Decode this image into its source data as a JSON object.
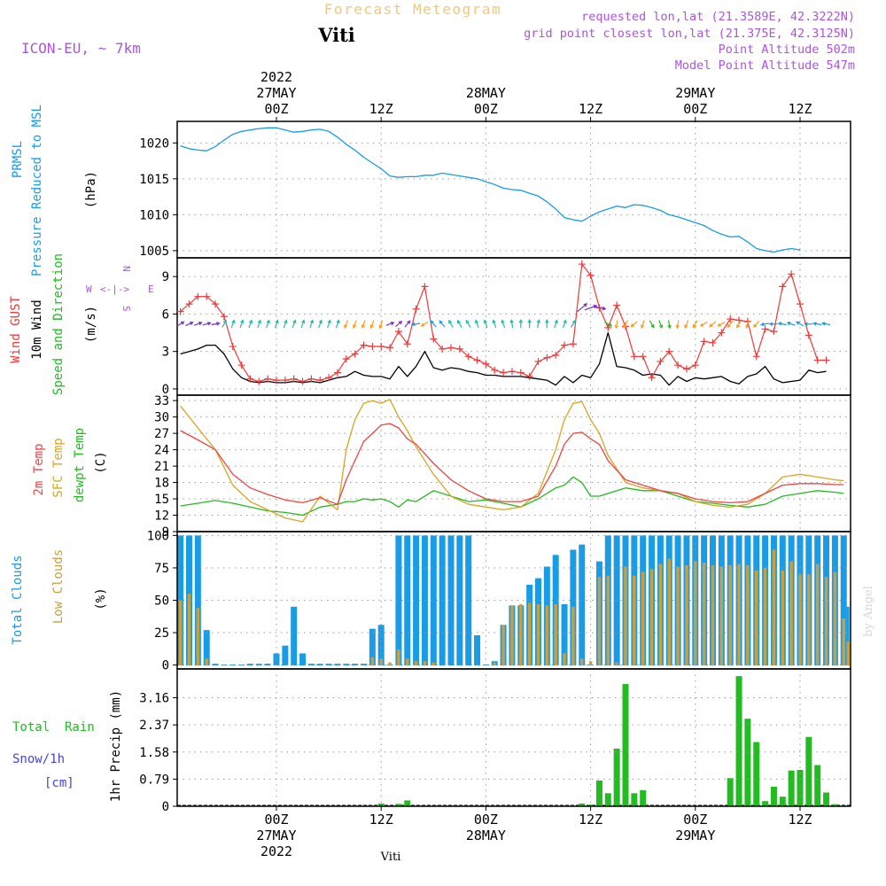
{
  "header": {
    "main_title": "Forecast Meteogram",
    "location": "Viti",
    "model": "ICON-EU, ~ 7km",
    "requested": "requested lon,lat (21.3589E, 42.3222N)",
    "grid_point": "grid point closest lon,lat (21.375E, 42.3125N)",
    "point_altitude": "Point Altitude 502m",
    "model_altitude": "Model Point Altitude 547m",
    "credit": "by Angel",
    "footer_location": "Viti"
  },
  "colors": {
    "pressure": "#1a9be6",
    "gust": "#ee3a3a",
    "wind": "#000000",
    "direction": "#22bb22",
    "compass": "#aa55dd",
    "temp2m": "#ee4444",
    "sfc": "#d9a520",
    "dewpt": "#22bb22",
    "total_clouds": "#1a9be6",
    "low_clouds": "#c8a040",
    "rain": "#22bb22",
    "snow": "#4444dd",
    "title": "#f0c878",
    "info": "#aa55dd"
  },
  "time_axis": {
    "top_labels": [
      {
        "hour": 0,
        "line1": "2022",
        "line2": "27MAY",
        "line3": "00Z"
      },
      {
        "hour": 12,
        "line1": "",
        "line2": "",
        "line3": "12Z"
      },
      {
        "hour": 24,
        "line1": "",
        "line2": "28MAY",
        "line3": "00Z"
      },
      {
        "hour": 36,
        "line1": "",
        "line2": "",
        "line3": "12Z"
      },
      {
        "hour": 48,
        "line1": "",
        "line2": "29MAY",
        "line3": "00Z"
      },
      {
        "hour": 60,
        "line1": "",
        "line2": "",
        "line3": "12Z"
      }
    ],
    "bottom_labels": [
      {
        "hour": 0,
        "line1": "00Z",
        "line2": "27MAY",
        "line3": "2022"
      },
      {
        "hour": 12,
        "line1": "12Z",
        "line2": "",
        "line3": ""
      },
      {
        "hour": 24,
        "line1": "00Z",
        "line2": "28MAY",
        "line3": ""
      },
      {
        "hour": 36,
        "line1": "12Z",
        "line2": "",
        "line3": ""
      },
      {
        "hour": 48,
        "line1": "00Z",
        "line2": "29MAY",
        "line3": ""
      },
      {
        "hour": 60,
        "line1": "12Z",
        "line2": "",
        "line3": ""
      }
    ]
  },
  "chart_data": [
    {
      "type": "line",
      "title": "PRMSL Pressure Reduced to MSL",
      "ylabel": "(hPa)",
      "label_lines": [
        "PRMSL",
        "Pressure Reduced to MSL"
      ],
      "ylim": [
        1004,
        1023
      ],
      "yticks": [
        1005,
        1010,
        1015,
        1020
      ],
      "x_hours": [
        -11,
        -10,
        -9,
        -8,
        -7,
        -6,
        -5,
        -4,
        -3,
        -2,
        -1,
        0,
        1,
        2,
        3,
        4,
        5,
        6,
        7,
        8,
        9,
        10,
        11,
        12,
        13,
        14,
        15,
        16,
        17,
        18,
        19,
        20,
        21,
        22,
        23,
        24,
        25,
        26,
        27,
        28,
        29,
        30,
        31,
        32,
        33,
        34,
        35,
        36,
        37,
        38,
        39,
        40,
        41,
        42,
        43,
        44,
        45,
        46,
        47,
        48,
        49,
        50,
        51,
        52,
        53,
        54,
        55,
        56,
        57,
        58,
        59,
        60,
        61,
        62,
        63,
        64,
        65,
        65.5
      ],
      "series": [
        {
          "name": "PRMSL",
          "values": [
            1019.6,
            1019.2,
            1019.0,
            1018.9,
            1019.5,
            1020.4,
            1021.2,
            1021.6,
            1021.8,
            1022.0,
            1022.1,
            1022.1,
            1021.8,
            1021.5,
            1021.6,
            1021.8,
            1021.9,
            1021.6,
            1020.8,
            1019.8,
            1019.0,
            1018.0,
            1017.2,
            1016.4,
            1015.4,
            1015.2,
            1015.3,
            1015.3,
            1015.5,
            1015.5,
            1015.8,
            1015.6,
            1015.4,
            1015.2,
            1015.0,
            1014.6,
            1014.2,
            1013.7,
            1013.5,
            1013.4,
            1013.0,
            1012.6,
            1011.8,
            1010.8,
            1009.6,
            1009.3,
            1009.1,
            1009.8,
            1010.4,
            1010.8,
            1011.2,
            1011.0,
            1011.4,
            1011.3,
            1011.0,
            1010.6,
            1010.0,
            1009.7,
            1009.3,
            1008.9,
            1008.5,
            1007.8,
            1007.3,
            1006.9,
            1007.0,
            1006.2,
            1005.3,
            1005.0,
            1004.8,
            1005.1,
            1005.3,
            1005.1
          ]
        }
      ]
    },
    {
      "type": "line",
      "title": "Wind GUST / 10m Wind Speed and Direction",
      "ylabel": "(m/s)",
      "ylim": [
        -0.5,
        10.5
      ],
      "yticks": [
        0,
        3,
        6,
        9
      ],
      "compass": {
        "w": "W",
        "e": "E",
        "n": "N",
        "s": "S",
        "arrow": "<-|->"
      },
      "x_hours": [
        -11,
        -10,
        -9,
        -8,
        -7,
        -6,
        -5,
        -4,
        -3,
        -2,
        -1,
        0,
        1,
        2,
        3,
        4,
        5,
        6,
        7,
        8,
        9,
        10,
        11,
        12,
        13,
        14,
        15,
        16,
        17,
        18,
        19,
        20,
        21,
        22,
        23,
        24,
        25,
        26,
        27,
        28,
        29,
        30,
        31,
        32,
        33,
        34,
        35,
        36,
        37,
        38,
        39,
        40,
        41,
        42,
        43,
        44,
        45,
        46,
        47,
        48,
        49,
        50,
        51,
        52,
        53,
        54,
        55,
        56,
        57,
        58,
        59,
        60,
        61,
        62,
        63,
        64,
        65
      ],
      "series": [
        {
          "name": "Wind GUST",
          "values": [
            6.2,
            6.8,
            7.4,
            7.4,
            6.8,
            5.8,
            3.4,
            1.9,
            0.8,
            0.6,
            0.8,
            0.7,
            0.7,
            0.8,
            0.6,
            0.8,
            0.7,
            0.9,
            1.3,
            2.4,
            2.8,
            3.5,
            3.4,
            3.4,
            3.3,
            4.6,
            3.6,
            6.4,
            8.2,
            4.0,
            3.2,
            3.3,
            3.2,
            2.6,
            2.3,
            2.0,
            1.5,
            1.3,
            1.4,
            1.3,
            1.0,
            2.2,
            2.5,
            2.7,
            3.5,
            3.6,
            10.0,
            9.1,
            6.5,
            4.9,
            6.7,
            5.0,
            2.6,
            2.6,
            0.9,
            2.2,
            3.0,
            1.9,
            1.6,
            1.9,
            3.8,
            3.7,
            4.5,
            5.6,
            5.5,
            5.4,
            2.6,
            4.8,
            4.6,
            8.2,
            9.2,
            6.8,
            4.3,
            2.3,
            2.3
          ]
        },
        {
          "name": "10m Wind",
          "values": [
            2.8,
            3.0,
            3.2,
            3.5,
            3.5,
            2.8,
            1.6,
            0.9,
            0.6,
            0.5,
            0.6,
            0.5,
            0.5,
            0.6,
            0.5,
            0.6,
            0.5,
            0.7,
            0.9,
            1.0,
            1.4,
            1.1,
            1.0,
            1.0,
            0.8,
            1.8,
            1.0,
            1.8,
            3.0,
            1.7,
            1.5,
            1.7,
            1.6,
            1.4,
            1.3,
            1.1,
            1.1,
            1.0,
            1.0,
            1.0,
            0.9,
            0.8,
            0.7,
            0.3,
            1.0,
            0.5,
            1.1,
            0.9,
            2.0,
            4.5,
            1.8,
            1.7,
            1.5,
            1.1,
            1.2,
            1.1,
            0.3,
            1.0,
            0.6,
            0.9,
            0.8,
            0.9,
            1.0,
            0.6,
            0.4,
            1.0,
            1.2,
            1.8,
            0.8,
            0.5,
            0.6,
            0.7,
            1.5,
            1.3,
            1.4
          ]
        },
        {
          "name": "Direction arrows (deg, from)",
          "values": [
            240,
            245,
            250,
            255,
            260,
            210,
            200,
            200,
            200,
            200,
            200,
            200,
            200,
            200,
            200,
            200,
            200,
            200,
            200,
            20,
            20,
            20,
            20,
            20,
            250,
            230,
            220,
            80,
            60,
            140,
            140,
            150,
            150,
            150,
            160,
            160,
            160,
            160,
            170,
            180,
            180,
            190,
            180,
            200,
            200,
            210,
            230,
            250,
            280,
            300,
            10,
            30,
            50,
            20,
            330,
            340,
            350,
            10,
            20,
            30,
            60,
            50,
            60,
            40,
            30,
            20,
            40,
            80,
            90,
            100,
            110,
            120,
            90,
            100,
            100
          ]
        }
      ]
    },
    {
      "type": "line",
      "title": "2m Temp / SFC Temp / dewpt Temp",
      "ylabel": "(C)",
      "ylim": [
        9,
        34
      ],
      "yticks": [
        9,
        12,
        15,
        18,
        21,
        24,
        27,
        30,
        33
      ],
      "x_hours": [
        -11,
        -9,
        -7,
        -5,
        -3,
        -1,
        1,
        3,
        5,
        7,
        8,
        9,
        10,
        11,
        12,
        13,
        14,
        15,
        16,
        18,
        20,
        22,
        24,
        26,
        28,
        30,
        32,
        33,
        34,
        35,
        36,
        37,
        38,
        40,
        42,
        44,
        46,
        48,
        50,
        52,
        54,
        56,
        58,
        60,
        62,
        64,
        65
      ],
      "series": [
        {
          "name": "2m Temp",
          "values": [
            27.5,
            25.8,
            24.0,
            19.5,
            17.0,
            15.8,
            14.8,
            14.3,
            15.2,
            14.0,
            18.5,
            22.0,
            25.5,
            27.0,
            28.5,
            28.8,
            28.0,
            26.0,
            25.0,
            21.5,
            18.5,
            16.5,
            15.0,
            14.5,
            14.5,
            15.5,
            21.0,
            25.0,
            27.0,
            27.2,
            26.0,
            25.0,
            22.0,
            18.5,
            17.5,
            16.5,
            16.0,
            15.0,
            14.5,
            14.3,
            14.5,
            16.0,
            17.5,
            17.8,
            17.8,
            17.6,
            17.6
          ]
        },
        {
          "name": "SFC Temp",
          "values": [
            32.0,
            28.0,
            24.0,
            17.5,
            14.5,
            13.0,
            11.5,
            10.8,
            15.5,
            13.0,
            24.0,
            29.5,
            32.5,
            33.0,
            32.5,
            33.2,
            30.0,
            27.5,
            24.5,
            19.5,
            15.5,
            14.0,
            13.5,
            13.0,
            13.5,
            16.0,
            24.0,
            29.5,
            32.5,
            32.8,
            29.5,
            27.0,
            23.0,
            18.0,
            17.0,
            16.5,
            16.0,
            14.5,
            13.8,
            13.5,
            14.0,
            16.0,
            19.0,
            19.5,
            19.0,
            18.5,
            18.3
          ]
        },
        {
          "name": "dewpt Temp",
          "values": [
            13.7,
            14.2,
            14.7,
            14.2,
            13.5,
            12.8,
            12.5,
            12.0,
            13.5,
            14.0,
            14.5,
            14.5,
            15.0,
            14.8,
            15.0,
            14.5,
            13.5,
            14.8,
            14.5,
            16.5,
            15.5,
            14.5,
            14.8,
            14.2,
            13.5,
            15.0,
            17.0,
            17.5,
            19.0,
            18.0,
            15.5,
            15.5,
            16.0,
            17.0,
            16.5,
            16.5,
            15.5,
            14.5,
            14.2,
            13.8,
            13.5,
            14.0,
            15.5,
            16.0,
            16.5,
            16.2,
            16.0
          ]
        }
      ]
    },
    {
      "type": "bar",
      "title": "Total Clouds / Low Clouds",
      "ylabel": "(%)",
      "ylim": [
        -3,
        103
      ],
      "yticks": [
        0,
        25,
        50,
        75,
        100
      ],
      "x_hours": [
        -11,
        -10,
        -9,
        -8,
        -7,
        -6,
        -5,
        -4,
        -3,
        -2,
        -1,
        0,
        1,
        2,
        3,
        4,
        5,
        6,
        7,
        8,
        9,
        10,
        11,
        12,
        13,
        14,
        15,
        16,
        17,
        18,
        19,
        20,
        21,
        22,
        23,
        24,
        25,
        26,
        27,
        28,
        29,
        30,
        31,
        32,
        33,
        34,
        35,
        36,
        37,
        38,
        39,
        40,
        41,
        42,
        43,
        44,
        45,
        46,
        47,
        48,
        49,
        50,
        51,
        52,
        53,
        54,
        55,
        56,
        57,
        58,
        59,
        60,
        61,
        62,
        63,
        64,
        65,
        65.5
      ],
      "series": [
        {
          "name": "Total Clouds",
          "values": [
            100,
            100,
            100,
            27,
            1,
            0,
            0,
            0,
            1,
            1,
            1,
            9,
            15,
            45,
            9,
            1,
            1,
            1,
            1,
            1,
            1,
            1,
            28,
            31,
            0,
            100,
            100,
            100,
            100,
            100,
            100,
            100,
            100,
            100,
            23,
            0,
            3,
            31,
            46,
            46,
            62,
            67,
            76,
            85,
            47,
            89,
            93,
            0,
            80,
            100,
            100,
            100,
            100,
            100,
            100,
            100,
            100,
            100,
            100,
            100,
            100,
            100,
            100,
            100,
            100,
            100,
            100,
            100,
            100,
            100,
            100,
            100,
            100,
            100,
            100,
            100,
            100,
            45
          ]
        },
        {
          "name": "Low Clouds",
          "values": [
            50,
            55,
            44,
            5,
            0,
            0,
            0,
            0,
            0,
            0,
            0,
            0,
            0,
            0,
            0,
            0,
            0,
            0,
            0,
            0,
            0,
            0,
            6,
            5,
            2,
            12,
            5,
            3,
            3,
            2,
            0,
            0,
            0,
            0,
            0,
            0,
            2,
            31,
            46,
            47,
            48,
            47,
            46,
            47,
            9,
            45,
            5,
            3,
            68,
            69,
            2,
            76,
            69,
            72,
            74,
            78,
            82,
            76,
            77,
            80,
            79,
            77,
            76,
            77,
            78,
            77,
            73,
            75,
            89,
            73,
            80,
            70,
            70,
            78,
            68,
            72,
            36,
            18
          ]
        }
      ]
    },
    {
      "type": "bar",
      "title": "Total Rain / Snow/1h [cm]",
      "ylabel": "1hr Precip (mm)",
      "ylim": [
        0,
        4.0
      ],
      "yticks": [
        0,
        0.79,
        1.58,
        2.37,
        3.16
      ],
      "ytick_labels": [
        "0",
        "0.79",
        "1.58",
        "2.37",
        "3.16"
      ],
      "label_lines": [
        "Total  Rain",
        "Snow/1h",
        "[cm]"
      ],
      "x_hours": [
        12,
        14,
        15,
        35,
        36,
        37,
        38,
        39,
        40,
        41,
        42,
        43,
        52,
        53,
        54,
        55,
        56,
        57,
        58,
        59,
        60,
        61,
        62,
        63,
        64
      ],
      "series": [
        {
          "name": "Total Rain",
          "values": [
            0.08,
            0.07,
            0.17,
            0.08,
            0.05,
            0.75,
            0.38,
            1.68,
            3.56,
            0.38,
            0.47,
            0.02,
            0.82,
            3.79,
            2.55,
            1.87,
            0.15,
            0.57,
            0.28,
            1.04,
            1.06,
            2.02,
            1.2,
            0.4,
            0.06
          ]
        }
      ]
    }
  ]
}
